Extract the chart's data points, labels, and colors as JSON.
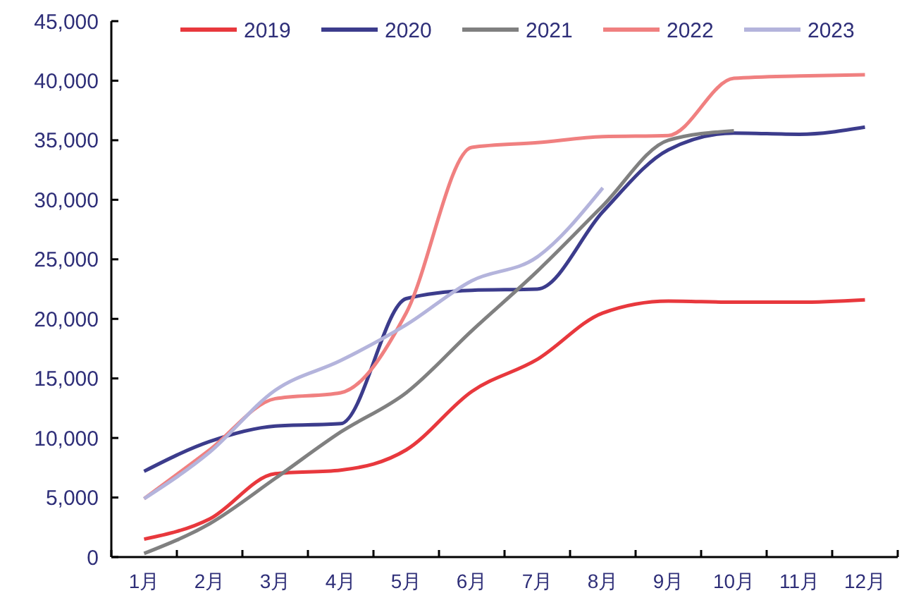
{
  "chart_data": {
    "type": "line",
    "categories": [
      "1月",
      "2月",
      "3月",
      "4月",
      "5月",
      "6月",
      "7月",
      "8月",
      "9月",
      "10月",
      "11月",
      "12月"
    ],
    "series": [
      {
        "name": "2019",
        "color": "#e8383d",
        "values": [
          1500,
          3200,
          7000,
          7300,
          9000,
          13900,
          16600,
          20500,
          21500,
          21400,
          21400,
          21600
        ]
      },
      {
        "name": "2020",
        "color": "#3c3c8c",
        "values": [
          7200,
          9700,
          11000,
          11200,
          21700,
          22400,
          22500,
          29000,
          34200,
          35600,
          35500,
          36100
        ]
      },
      {
        "name": "2021",
        "color": "#808080",
        "values": [
          300,
          2800,
          6600,
          10500,
          13800,
          19000,
          24000,
          29500,
          35000,
          35800,
          null,
          null
        ]
      },
      {
        "name": "2022",
        "color": "#f08080",
        "values": [
          4900,
          9000,
          13300,
          13800,
          20500,
          34400,
          34800,
          35300,
          35400,
          40200,
          40400,
          40500
        ]
      },
      {
        "name": "2023",
        "color": "#b4b4dc",
        "values": [
          4900,
          8800,
          14000,
          16500,
          19500,
          23200,
          25200,
          31000,
          null,
          null,
          null,
          null
        ]
      }
    ],
    "ylim": [
      0,
      45000
    ],
    "yticks": [
      {
        "value": 0,
        "label": "0"
      },
      {
        "value": 5000,
        "label": "5,000"
      },
      {
        "value": 10000,
        "label": "10,000"
      },
      {
        "value": 15000,
        "label": "15,000"
      },
      {
        "value": 20000,
        "label": "20,000"
      },
      {
        "value": 25000,
        "label": "25,000"
      },
      {
        "value": 30000,
        "label": "30,000"
      },
      {
        "value": 35000,
        "label": "35,000"
      },
      {
        "value": 40000,
        "label": "40,000"
      },
      {
        "value": 45000,
        "label": "45,000"
      }
    ],
    "grid": false,
    "legend": "top",
    "marker": "none",
    "line_style": "solid"
  }
}
